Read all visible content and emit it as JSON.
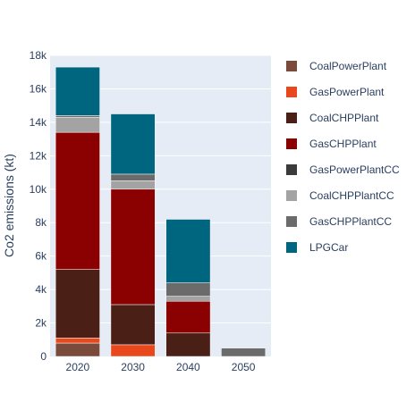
{
  "chart_data": {
    "type": "bar",
    "stacked": true,
    "categories": [
      "2020",
      "2030",
      "2040",
      "2050"
    ],
    "ylabel": "Co2 emissions (kt)",
    "xlabel": "",
    "ylim": [
      0,
      18000
    ],
    "y_ticks": [
      0,
      2000,
      4000,
      6000,
      8000,
      10000,
      12000,
      14000,
      16000,
      18000
    ],
    "y_tick_labels": [
      "0",
      "2k",
      "4k",
      "6k",
      "8k",
      "10k",
      "12k",
      "14k",
      "16k",
      "18k"
    ],
    "grid": true,
    "legend_position": "right",
    "plot_background": "#e5ecf6",
    "series": [
      {
        "name": "CoalPowerPlant",
        "color": "#7a4a3a",
        "values": [
          800,
          0,
          0,
          0
        ]
      },
      {
        "name": "GasPowerPlant",
        "color": "#e8481c",
        "values": [
          300,
          700,
          0,
          0
        ]
      },
      {
        "name": "CoalCHPPlant",
        "color": "#4a2016",
        "values": [
          4100,
          2400,
          1400,
          0
        ]
      },
      {
        "name": "GasCHPPlant",
        "color": "#8b0000",
        "values": [
          8200,
          6900,
          1900,
          0
        ]
      },
      {
        "name": "GasPowerPlantCC",
        "color": "#3b3b3b",
        "values": [
          0,
          0,
          0,
          0
        ]
      },
      {
        "name": "CoalCHPPlantCC",
        "color": "#a3a3a3",
        "values": [
          900,
          500,
          300,
          0
        ]
      },
      {
        "name": "GasCHPPlantCC",
        "color": "#6b6b6b",
        "values": [
          100,
          400,
          800,
          500
        ]
      },
      {
        "name": "LPGCar",
        "color": "#006680",
        "values": [
          2900,
          3600,
          3800,
          0
        ]
      }
    ]
  }
}
